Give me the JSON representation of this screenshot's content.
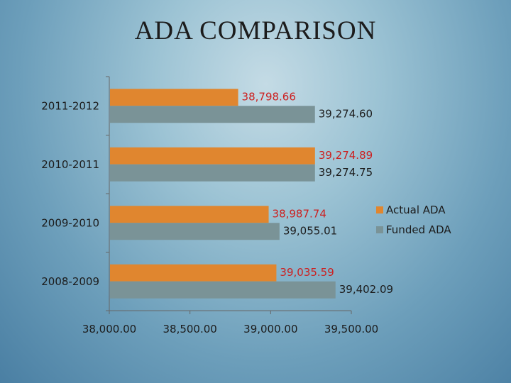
{
  "slide": {
    "title": "ADA COMPARISON"
  },
  "colors": {
    "actual": "#e0862f",
    "funded": "#7a9397",
    "actual_label": "#cc2020",
    "axis": "#666666"
  },
  "chart_data": {
    "type": "bar",
    "orientation": "horizontal",
    "categories": [
      "2011-2012",
      "2010-2011",
      "2009-2010",
      "2008-2009"
    ],
    "series": [
      {
        "name": "Actual ADA",
        "values": [
          38798.66,
          39274.89,
          38987.74,
          39035.59
        ],
        "labels": [
          "38,798.66",
          "39,274.89",
          "38,987.74",
          "39,035.59"
        ]
      },
      {
        "name": "Funded ADA",
        "values": [
          39274.6,
          39274.75,
          39055.01,
          39402.09
        ],
        "labels": [
          "39,274.60",
          "39,274.75",
          "39,055.01",
          "39,402.09"
        ]
      }
    ],
    "xlim": [
      38000,
      39500
    ],
    "xticks": [
      38000,
      38500,
      39000,
      39500
    ],
    "xtick_labels": [
      "38,000.00",
      "38,500.00",
      "39,000.00",
      "39,500.00"
    ],
    "grid": false,
    "legend_position": "right"
  }
}
